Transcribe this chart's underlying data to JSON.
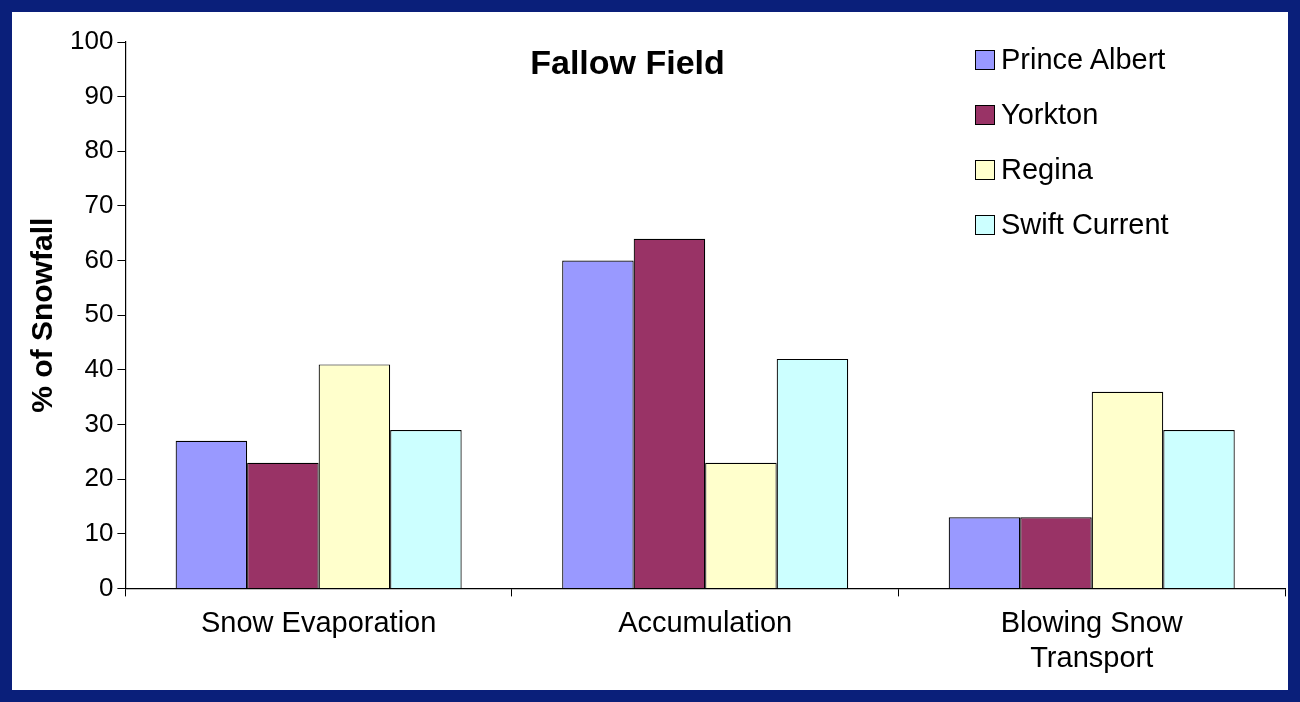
{
  "chart_data": {
    "type": "bar",
    "title": "Fallow Field",
    "ylabel": "% of Snowfall",
    "categories": [
      "Snow Evaporation",
      "Accumulation",
      "Blowing Snow Transport"
    ],
    "series": [
      {
        "name": "Prince Albert",
        "color": "#9999ff",
        "values": [
          27,
          60,
          13
        ]
      },
      {
        "name": "Yorkton",
        "color": "#993366",
        "values": [
          23,
          64,
          13
        ]
      },
      {
        "name": "Regina",
        "color": "#ffffcc",
        "values": [
          41,
          23,
          36
        ]
      },
      {
        "name": "Swift Current",
        "color": "#ccffff",
        "values": [
          29,
          42,
          29
        ]
      }
    ],
    "ylim": [
      0,
      100
    ],
    "yticks": [
      0,
      10,
      20,
      30,
      40,
      50,
      60,
      70,
      80,
      90,
      100
    ],
    "grid": false,
    "legend": "top right"
  }
}
